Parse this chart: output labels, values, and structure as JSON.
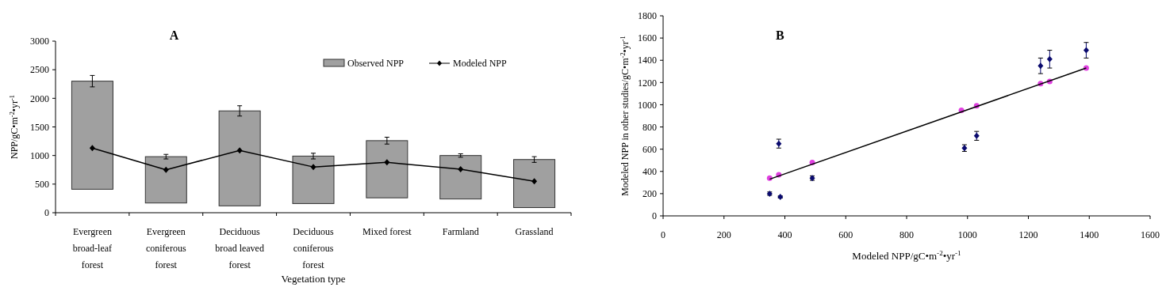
{
  "chart_data": [
    {
      "type": "bar",
      "title": "A",
      "xlabel": "Vegetation type",
      "ylabel": "NPP/gC•m$^{-2}$•yr$^{-1}$",
      "categories": [
        "Evergreen broad-leaf forest",
        "Evergreen coniferous forest",
        "Deciduous broad leaved forest",
        "Deciduous coniferous forest",
        "Mixed forest",
        "Farmland",
        "Grassland"
      ],
      "series": [
        {
          "name": "Observed NPP",
          "color": "#a0a0a0",
          "base": [
            410,
            170,
            120,
            160,
            260,
            240,
            90
          ],
          "values": [
            1890,
            810,
            1660,
            830,
            1000,
            760,
            840
          ],
          "errors": [
            100,
            40,
            90,
            50,
            60,
            30,
            50
          ]
        },
        {
          "name": "Modeled NPP",
          "type": "line",
          "color": "#000000",
          "marker": "diamond",
          "values": [
            1130,
            750,
            1090,
            800,
            880,
            760,
            550
          ]
        }
      ],
      "ylim": [
        0,
        3000
      ],
      "yticks": [
        0,
        500,
        1000,
        1500,
        2000,
        2500,
        3000
      ],
      "legend": "top right"
    },
    {
      "type": "scatter",
      "title": "B",
      "xlabel": "Modeled NPP/gC•m$^{-2}$•yr$^{-1}$",
      "ylabel": "Modeled NPP in other studies/gC•m$^{-2}$•yr$^{-1}$",
      "series": [
        {
          "color": "#0a0a6e",
          "marker": "diamond",
          "x": [
            350,
            385,
            380,
            490,
            990,
            1030,
            1240,
            1270,
            1390
          ],
          "values": [
            200,
            170,
            650,
            340,
            610,
            720,
            1350,
            1410,
            1490
          ],
          "errors": [
            15,
            10,
            40,
            20,
            30,
            40,
            70,
            80,
            70
          ]
        },
        {
          "color": "#e040e0",
          "marker": "circle",
          "x": [
            350,
            380,
            490,
            980,
            1030,
            1240,
            1270,
            1390
          ],
          "values": [
            340,
            370,
            480,
            950,
            990,
            1190,
            1210,
            1330
          ]
        },
        {
          "type": "line",
          "color": "#000000",
          "marker": "none",
          "x": [
            350,
            1390
          ],
          "values": [
            330,
            1330
          ]
        }
      ],
      "xlim": [
        0,
        1600
      ],
      "xticks": [
        0,
        200,
        400,
        600,
        800,
        1000,
        1200,
        1400,
        1600
      ],
      "ylim": [
        0,
        1800
      ],
      "yticks": [
        0,
        200,
        400,
        600,
        800,
        1000,
        1200,
        1400,
        1600,
        1800
      ]
    }
  ]
}
